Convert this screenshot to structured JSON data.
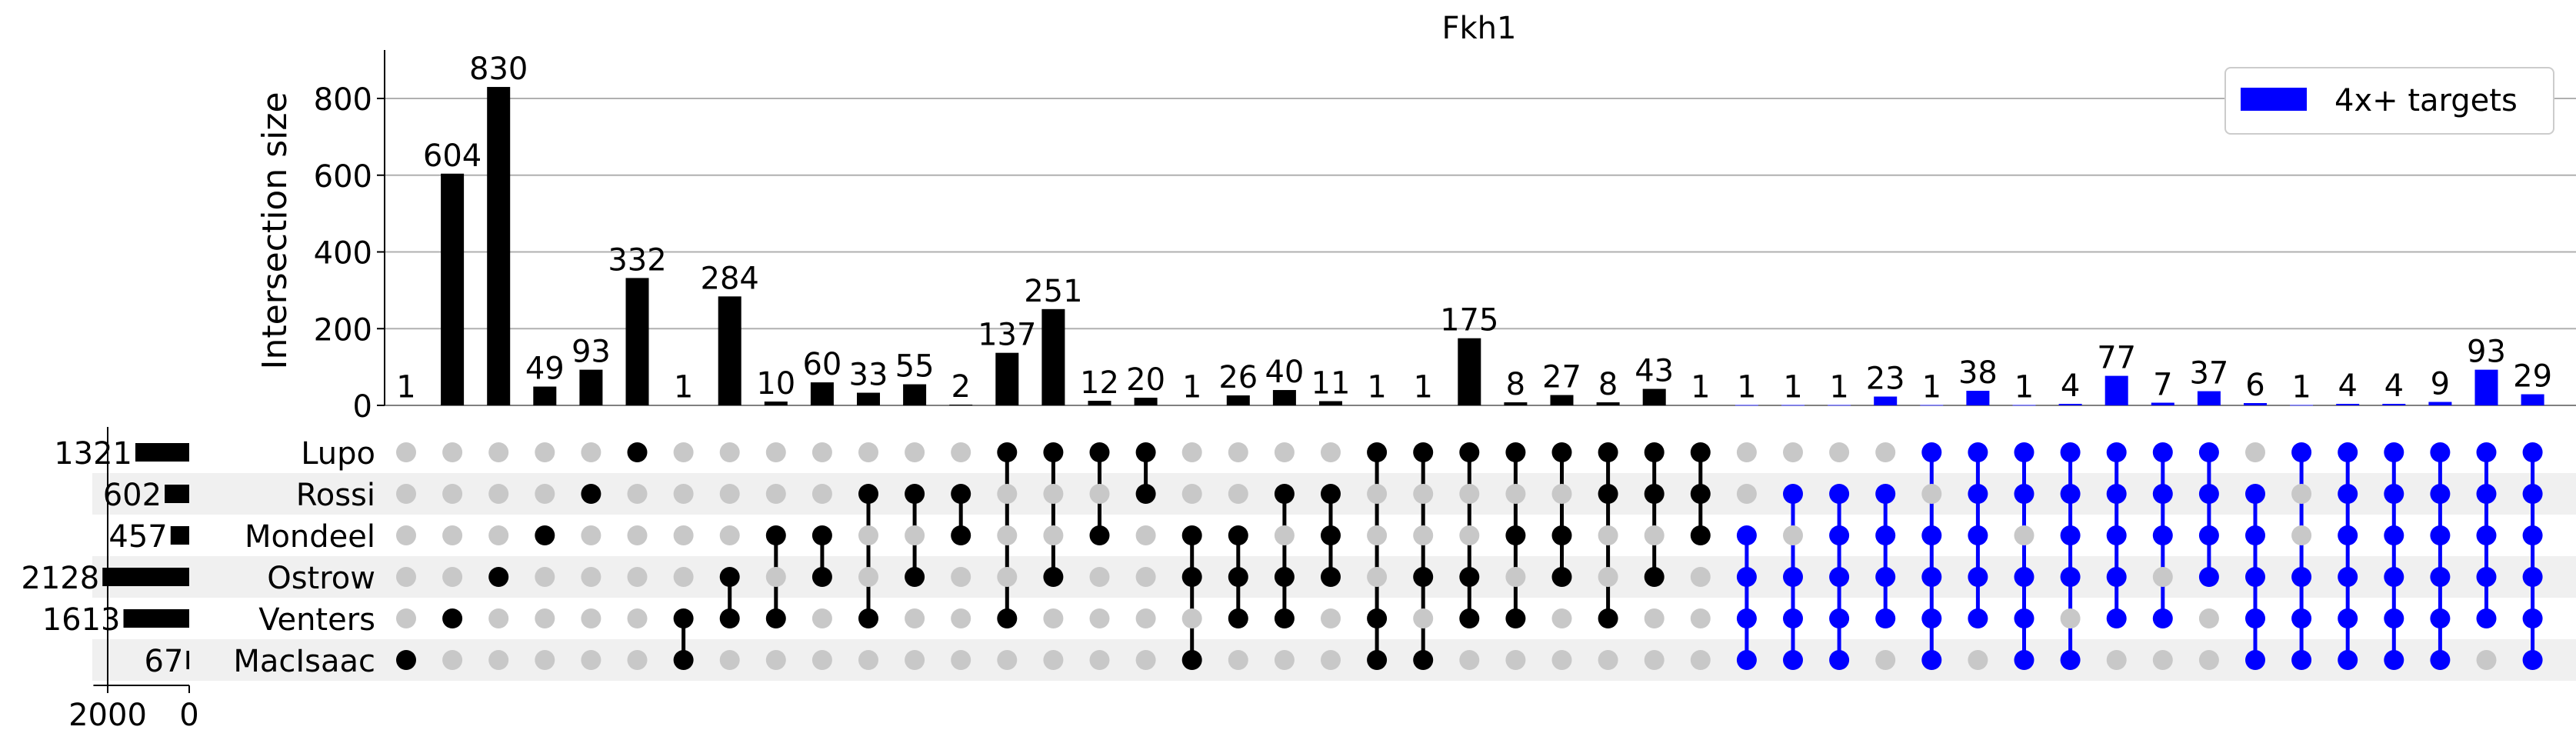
{
  "chart_data": {
    "type": "upset",
    "title": "Fkh1",
    "ylabel": "Intersection size",
    "ylim": [
      0,
      880
    ],
    "yticks": [
      0,
      200,
      400,
      600,
      800
    ],
    "grid": true,
    "legend": {
      "label": "4x+ targets",
      "color": "#0000ff",
      "position": "top-right"
    },
    "colors": {
      "default": "#000000",
      "highlight": "#0000ff",
      "inactive_dot": "#c8c8c8",
      "shade": "#f0f0f0",
      "grid": "#b0b0b0"
    },
    "sets": [
      {
        "name": "Lupo",
        "size": 1321
      },
      {
        "name": "Rossi",
        "size": 602
      },
      {
        "name": "Mondeel",
        "size": 457
      },
      {
        "name": "Ostrow",
        "size": 2128
      },
      {
        "name": "Venters",
        "size": 1613
      },
      {
        "name": "MacIsaac",
        "size": 67
      }
    ],
    "set_size_ticks": [
      2000,
      0
    ],
    "set_size_max": 2350,
    "intersections": [
      {
        "sets": [
          "MacIsaac"
        ],
        "value": 1,
        "highlight": false
      },
      {
        "sets": [
          "Venters"
        ],
        "value": 604,
        "highlight": false
      },
      {
        "sets": [
          "Ostrow"
        ],
        "value": 830,
        "highlight": false
      },
      {
        "sets": [
          "Mondeel"
        ],
        "value": 49,
        "highlight": false
      },
      {
        "sets": [
          "Rossi"
        ],
        "value": 93,
        "highlight": false
      },
      {
        "sets": [
          "Lupo"
        ],
        "value": 332,
        "highlight": false
      },
      {
        "sets": [
          "Venters",
          "MacIsaac"
        ],
        "value": 1,
        "highlight": false
      },
      {
        "sets": [
          "Ostrow",
          "Venters"
        ],
        "value": 284,
        "highlight": false
      },
      {
        "sets": [
          "Mondeel",
          "Venters"
        ],
        "value": 10,
        "highlight": false
      },
      {
        "sets": [
          "Mondeel",
          "Ostrow"
        ],
        "value": 60,
        "highlight": false
      },
      {
        "sets": [
          "Rossi",
          "Venters"
        ],
        "value": 33,
        "highlight": false
      },
      {
        "sets": [
          "Rossi",
          "Ostrow"
        ],
        "value": 55,
        "highlight": false
      },
      {
        "sets": [
          "Rossi",
          "Mondeel"
        ],
        "value": 2,
        "highlight": false
      },
      {
        "sets": [
          "Lupo",
          "Venters"
        ],
        "value": 137,
        "highlight": false
      },
      {
        "sets": [
          "Lupo",
          "Ostrow"
        ],
        "value": 251,
        "highlight": false
      },
      {
        "sets": [
          "Lupo",
          "Mondeel"
        ],
        "value": 12,
        "highlight": false
      },
      {
        "sets": [
          "Lupo",
          "Rossi"
        ],
        "value": 20,
        "highlight": false
      },
      {
        "sets": [
          "Mondeel",
          "Ostrow",
          "MacIsaac"
        ],
        "value": 1,
        "highlight": false
      },
      {
        "sets": [
          "Mondeel",
          "Ostrow",
          "Venters"
        ],
        "value": 26,
        "highlight": false
      },
      {
        "sets": [
          "Rossi",
          "Ostrow",
          "Venters"
        ],
        "value": 40,
        "highlight": false
      },
      {
        "sets": [
          "Rossi",
          "Mondeel",
          "Ostrow"
        ],
        "value": 11,
        "highlight": false
      },
      {
        "sets": [
          "Lupo",
          "Venters",
          "MacIsaac"
        ],
        "value": 1,
        "highlight": false
      },
      {
        "sets": [
          "Lupo",
          "Ostrow",
          "MacIsaac"
        ],
        "value": 1,
        "highlight": false
      },
      {
        "sets": [
          "Lupo",
          "Ostrow",
          "Venters"
        ],
        "value": 175,
        "highlight": false
      },
      {
        "sets": [
          "Lupo",
          "Mondeel",
          "Venters"
        ],
        "value": 8,
        "highlight": false
      },
      {
        "sets": [
          "Lupo",
          "Mondeel",
          "Ostrow"
        ],
        "value": 27,
        "highlight": false
      },
      {
        "sets": [
          "Lupo",
          "Rossi",
          "Venters"
        ],
        "value": 8,
        "highlight": false
      },
      {
        "sets": [
          "Lupo",
          "Rossi",
          "Ostrow"
        ],
        "value": 43,
        "highlight": false
      },
      {
        "sets": [
          "Lupo",
          "Rossi",
          "Mondeel"
        ],
        "value": 1,
        "highlight": false
      },
      {
        "sets": [
          "Mondeel",
          "Ostrow",
          "Venters",
          "MacIsaac"
        ],
        "value": 1,
        "highlight": true
      },
      {
        "sets": [
          "Rossi",
          "Ostrow",
          "Venters",
          "MacIsaac"
        ],
        "value": 1,
        "highlight": true
      },
      {
        "sets": [
          "Rossi",
          "Mondeel",
          "Ostrow",
          "Venters",
          "MacIsaac"
        ],
        "value": 1,
        "highlight": true
      },
      {
        "sets": [
          "Rossi",
          "Mondeel",
          "Ostrow",
          "Venters"
        ],
        "value": 23,
        "highlight": true
      },
      {
        "sets": [
          "Lupo",
          "Mondeel",
          "Ostrow",
          "Venters",
          "MacIsaac"
        ],
        "value": 1,
        "highlight": true
      },
      {
        "sets": [
          "Lupo",
          "Rossi",
          "Mondeel",
          "Ostrow",
          "Venters"
        ],
        "value": 38,
        "highlight": true
      },
      {
        "sets": [
          "Lupo",
          "Rossi",
          "Ostrow",
          "Venters",
          "MacIsaac"
        ],
        "value": 1,
        "highlight": true
      },
      {
        "sets": [
          "Lupo",
          "Rossi",
          "Mondeel",
          "Ostrow",
          "MacIsaac"
        ],
        "value": 4,
        "highlight": true
      },
      {
        "sets": [
          "Lupo",
          "Rossi",
          "Mondeel",
          "Ostrow",
          "Venters"
        ],
        "value": 77,
        "highlight": true
      },
      {
        "sets": [
          "Lupo",
          "Rossi",
          "Mondeel",
          "Venters"
        ],
        "value": 7,
        "highlight": true
      },
      {
        "sets": [
          "Lupo",
          "Rossi",
          "Mondeel",
          "Ostrow"
        ],
        "value": 37,
        "highlight": true
      },
      {
        "sets": [
          "Rossi",
          "Mondeel",
          "Ostrow",
          "Venters",
          "MacIsaac"
        ],
        "value": 6,
        "highlight": true
      },
      {
        "sets": [
          "Lupo",
          "Ostrow",
          "Venters",
          "MacIsaac"
        ],
        "value": 1,
        "highlight": true
      },
      {
        "sets": [
          "Lupo",
          "Rossi",
          "Mondeel",
          "Ostrow",
          "Venters",
          "MacIsaac"
        ],
        "value": 4,
        "highlight": true
      },
      {
        "sets": [
          "Lupo",
          "Rossi",
          "Mondeel",
          "Ostrow",
          "Venters",
          "MacIsaac"
        ],
        "value": 4,
        "highlight": true
      },
      {
        "sets": [
          "Lupo",
          "Rossi",
          "Mondeel",
          "Ostrow",
          "Venters",
          "MacIsaac"
        ],
        "value": 9,
        "highlight": true
      },
      {
        "sets": [
          "Lupo",
          "Rossi",
          "Mondeel",
          "Ostrow",
          "Venters"
        ],
        "value": 93,
        "highlight": true
      },
      {
        "sets": [
          "Lupo",
          "Rossi",
          "Mondeel",
          "Ostrow",
          "Venters",
          "MacIsaac"
        ],
        "value": 29,
        "highlight": true
      }
    ]
  }
}
